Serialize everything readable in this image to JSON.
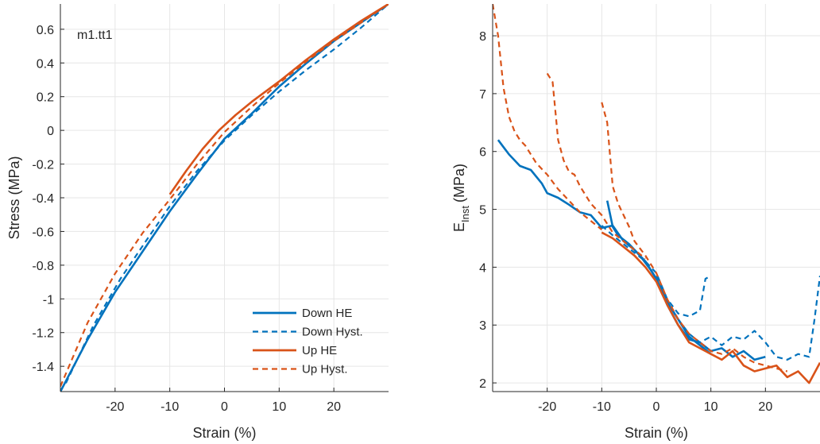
{
  "colors": {
    "blue": "#0072BD",
    "orange": "#D95319",
    "axis": "#262626",
    "grid": "#e6e6e6"
  },
  "chart_data": [
    {
      "type": "line",
      "annotation": "m1.tt1",
      "xlabel": "Strain (%)",
      "ylabel": "Stress (MPa)",
      "xlim": [
        -30,
        30
      ],
      "ylim": [
        -1.55,
        0.75
      ],
      "xticks": [
        -20,
        -10,
        0,
        10,
        20
      ],
      "yticks": [
        0.6,
        0.4,
        0.2,
        0,
        -0.2,
        -0.4,
        -0.6,
        -0.8,
        -1,
        -1.2,
        -1.4
      ],
      "xtick_labels": [
        "-20",
        "-10",
        "0",
        "10",
        "20"
      ],
      "ytick_labels": [
        "0.6",
        "0.4",
        "0.2",
        "0",
        "-0.2",
        "-0.4",
        "-0.6",
        "-0.8",
        "-1",
        "-1.2",
        "-1.4"
      ],
      "grid": true,
      "legend_position": "bottom-right",
      "series": [
        {
          "name": "Down HE",
          "color": "#0072BD",
          "dash": "solid",
          "x": [
            -30,
            -25,
            -20,
            -15,
            -10,
            -5,
            0,
            5,
            10,
            15,
            20,
            25,
            30
          ],
          "y": [
            -1.55,
            -1.24,
            -0.96,
            -0.72,
            -0.48,
            -0.26,
            -0.05,
            0.1,
            0.26,
            0.4,
            0.53,
            0.64,
            0.75
          ]
        },
        {
          "name": "Down Hyst.",
          "color": "#0072BD",
          "dash": "dashed",
          "x": [
            -29,
            -24,
            -19,
            -14,
            -10,
            -5,
            0,
            5,
            10,
            15,
            20,
            25,
            30
          ],
          "y": [
            -1.5,
            -1.16,
            -0.88,
            -0.64,
            -0.45,
            -0.24,
            -0.06,
            0.09,
            0.23,
            0.36,
            0.48,
            0.61,
            0.75
          ]
        },
        {
          "name": "Up HE",
          "color": "#D95319",
          "dash": "solid",
          "x": [
            -10,
            -7,
            -4,
            -1,
            2,
            5,
            10,
            15,
            20,
            25,
            30
          ],
          "y": [
            -0.38,
            -0.24,
            -0.11,
            0.0,
            0.09,
            0.17,
            0.29,
            0.42,
            0.54,
            0.65,
            0.75
          ]
        },
        {
          "name": "Up Hyst.",
          "color": "#D95319",
          "dash": "dashed",
          "x": [
            -30,
            -25,
            -20,
            -15,
            -10,
            -5,
            0,
            5,
            10,
            15,
            20,
            25,
            30
          ],
          "y": [
            -1.52,
            -1.14,
            -0.85,
            -0.61,
            -0.41,
            -0.2,
            -0.01,
            0.14,
            0.28,
            0.41,
            0.53,
            0.64,
            0.75
          ]
        }
      ]
    },
    {
      "type": "line",
      "xlabel": "Strain (%)",
      "ylabel_main": "E",
      "ylabel_sub": "Inst",
      "ylabel_unit": "(MPa)",
      "xlim": [
        -30,
        30
      ],
      "ylim": [
        1.85,
        8.55
      ],
      "xticks": [
        -20,
        -10,
        0,
        10,
        20
      ],
      "yticks": [
        8,
        7,
        6,
        5,
        4,
        3,
        2
      ],
      "xtick_labels": [
        "-20",
        "-10",
        "0",
        "10",
        "20"
      ],
      "ytick_labels": [
        "8",
        "7",
        "6",
        "5",
        "4",
        "3",
        "2"
      ],
      "grid": true,
      "series": [
        {
          "name": "Down HE",
          "color": "#0072BD",
          "dash": "solid",
          "x": [
            -29,
            -27,
            -25,
            -23,
            -21,
            -20,
            -18,
            -16,
            -14,
            -12,
            -10,
            -8,
            -6,
            -4,
            -2,
            0,
            2,
            4,
            6,
            8,
            10
          ],
          "y": [
            6.2,
            5.95,
            5.75,
            5.68,
            5.45,
            5.28,
            5.2,
            5.08,
            4.95,
            4.9,
            4.68,
            4.72,
            4.45,
            4.3,
            4.1,
            3.8,
            3.4,
            3.1,
            2.8,
            2.65,
            2.5
          ]
        },
        {
          "name": "Down HE",
          "color": "#0072BD",
          "dash": "solid",
          "x": [
            -9,
            -8,
            -7,
            -5,
            -3,
            -1,
            0,
            2,
            4,
            6,
            8,
            10,
            12,
            14,
            16,
            18,
            20
          ],
          "y": [
            5.15,
            4.7,
            4.55,
            4.4,
            4.2,
            3.95,
            3.8,
            3.35,
            3.0,
            2.75,
            2.7,
            2.55,
            2.6,
            2.45,
            2.55,
            2.4,
            2.45
          ]
        },
        {
          "name": "Down Hyst.",
          "color": "#0072BD",
          "dash": "dashed",
          "x": [
            -10,
            -8,
            -6,
            -4,
            -2,
            0,
            2,
            4,
            6,
            8,
            9,
            10
          ],
          "y": [
            4.72,
            4.55,
            4.4,
            4.25,
            4.1,
            3.9,
            3.45,
            3.2,
            3.15,
            3.25,
            3.8,
            3.85
          ]
        },
        {
          "name": "Down Hyst.",
          "color": "#0072BD",
          "dash": "dashed",
          "x": [
            0,
            2,
            4,
            6,
            8,
            10,
            12,
            14,
            16,
            18,
            20,
            22,
            24,
            26,
            28,
            29,
            30
          ],
          "y": [
            3.85,
            3.4,
            3.1,
            2.85,
            2.7,
            2.8,
            2.65,
            2.8,
            2.75,
            2.9,
            2.7,
            2.45,
            2.4,
            2.5,
            2.45,
            3.1,
            3.85
          ]
        },
        {
          "name": "Up HE",
          "color": "#D95319",
          "dash": "solid",
          "x": [
            -10,
            -8,
            -6,
            -4,
            -2,
            0,
            2,
            4,
            6,
            8,
            10,
            12,
            14,
            16,
            18,
            20,
            22,
            24,
            26,
            28,
            30
          ],
          "y": [
            4.6,
            4.5,
            4.35,
            4.2,
            4.0,
            3.75,
            3.35,
            3.0,
            2.7,
            2.6,
            2.5,
            2.4,
            2.55,
            2.3,
            2.2,
            2.25,
            2.3,
            2.1,
            2.2,
            2.0,
            2.35
          ]
        },
        {
          "name": "Up Hyst.",
          "color": "#D95319",
          "dash": "dashed",
          "x": [
            -30,
            -29,
            -28,
            -27,
            -26,
            -25,
            -24,
            -22,
            -20,
            -18,
            -16,
            -14,
            -12,
            -10
          ],
          "y": [
            8.55,
            8.0,
            7.1,
            6.6,
            6.35,
            6.2,
            6.1,
            5.8,
            5.6,
            5.35,
            5.15,
            4.95,
            4.8,
            4.65
          ]
        },
        {
          "name": "Up Hyst.",
          "color": "#D95319",
          "dash": "dashed",
          "x": [
            -20,
            -19,
            -18,
            -17,
            -16,
            -15,
            -14,
            -12,
            -10,
            -8,
            -6,
            -4,
            -2
          ],
          "y": [
            7.35,
            7.2,
            6.2,
            5.85,
            5.65,
            5.6,
            5.4,
            5.1,
            4.9,
            4.6,
            4.45,
            4.3,
            4.15
          ]
        },
        {
          "name": "Up Hyst.",
          "color": "#D95319",
          "dash": "dashed",
          "x": [
            -10,
            -9,
            -8,
            -7,
            -6,
            -5,
            -4,
            -2,
            0,
            2,
            4,
            6,
            8,
            10,
            12,
            14,
            16,
            18,
            20,
            22,
            24
          ],
          "y": [
            6.85,
            6.5,
            5.4,
            5.1,
            4.9,
            4.7,
            4.45,
            4.2,
            3.9,
            3.45,
            3.1,
            2.85,
            2.7,
            2.55,
            2.5,
            2.6,
            2.45,
            2.35,
            2.3,
            2.25,
            2.2
          ]
        }
      ]
    }
  ],
  "legend": {
    "items": [
      {
        "label": "Down HE",
        "color": "#0072BD",
        "dash": "solid"
      },
      {
        "label": "Down Hyst.",
        "color": "#0072BD",
        "dash": "dashed"
      },
      {
        "label": "Up HE",
        "color": "#D95319",
        "dash": "solid"
      },
      {
        "label": "Up Hyst.",
        "color": "#D95319",
        "dash": "dashed"
      }
    ]
  }
}
